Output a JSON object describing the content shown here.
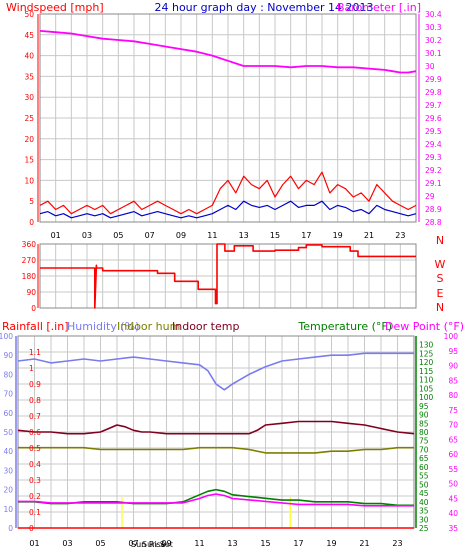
{
  "colors": {
    "background": "#ffffff",
    "grid": "#c8c8c8",
    "frame": "#000000",
    "windspeed": "#ff0000",
    "windavg": "#0000c8",
    "barometer": "#ff00ff",
    "direction": "#ff0000",
    "humidity": "#7b7bf0",
    "indoor_hum": "#7d7d00",
    "indoor_temp": "#800020",
    "temperature": "#008000",
    "dew_point": "#ff00ff",
    "rainfall": "#ff0000",
    "sun": "#ffff40"
  },
  "header": {
    "left": "Windspeed [mph]",
    "center": "24 hour graph day : November 14 2013",
    "right": "Barometer [.in]"
  },
  "panel3_header": {
    "rainfall": "Rainfall [.in]",
    "humidity": "Humidity (%)",
    "indoor_hum": "Indoor hum",
    "indoor_temp": "Indoor temp",
    "temperature": "Temperature (°F)",
    "dew_point": "Dew Point (°F)"
  },
  "sun_labels": {
    "rise": "Sun Rise",
    "set": "Sun Set"
  },
  "x_ticks": [
    "01",
    "03",
    "05",
    "07",
    "09",
    "11",
    "13",
    "15",
    "17",
    "19",
    "21",
    "23"
  ],
  "chart_data": [
    {
      "type": "line",
      "title": "24 hour graph day : November 14 2013",
      "x_range_hours": [
        0,
        24
      ],
      "y_left": {
        "label": "Windspeed [mph]",
        "range": [
          0,
          50
        ],
        "ticks": [
          "0",
          "5",
          "10",
          "15",
          "20",
          "25",
          "30",
          "35",
          "40",
          "45",
          "50"
        ]
      },
      "y_right": {
        "label": "Barometer [.in]",
        "range": [
          28.8,
          30.4
        ],
        "ticks": [
          "28.8",
          "28.9",
          "29",
          "29.1",
          "29.2",
          "29.3",
          "29.4",
          "29.5",
          "29.6",
          "29.7",
          "29.8",
          "29.9",
          "30",
          "30.1",
          "30.2",
          "30.3",
          "30.4"
        ]
      },
      "grid": true,
      "series": [
        {
          "name": "Windspeed [mph]",
          "axis": "left",
          "color": "#ff0000",
          "x": [
            0,
            0.5,
            1,
            1.5,
            2,
            2.5,
            3,
            3.5,
            4,
            4.5,
            5,
            5.5,
            6,
            6.5,
            7,
            7.5,
            8,
            8.5,
            9,
            9.5,
            10,
            10.5,
            11,
            11.5,
            12,
            12.5,
            13,
            13.5,
            14,
            14.5,
            15,
            15.5,
            16,
            16.5,
            17,
            17.5,
            18,
            18.5,
            19,
            19.5,
            20,
            20.5,
            21,
            21.5,
            22,
            22.5,
            23,
            23.5,
            24
          ],
          "y": [
            4,
            5,
            3,
            4,
            2,
            3,
            4,
            3,
            4,
            2,
            3,
            4,
            5,
            3,
            4,
            5,
            4,
            3,
            2,
            3,
            2,
            3,
            4,
            8,
            10,
            7,
            11,
            9,
            8,
            10,
            6,
            9,
            11,
            8,
            10,
            9,
            12,
            7,
            9,
            8,
            6,
            7,
            5,
            9,
            7,
            5,
            4,
            3,
            4
          ]
        },
        {
          "name": "Wind average",
          "axis": "left",
          "color": "#0000c8",
          "x": [
            0,
            0.5,
            1,
            1.5,
            2,
            2.5,
            3,
            3.5,
            4,
            4.5,
            5,
            5.5,
            6,
            6.5,
            7,
            7.5,
            8,
            8.5,
            9,
            9.5,
            10,
            10.5,
            11,
            11.5,
            12,
            12.5,
            13,
            13.5,
            14,
            14.5,
            15,
            15.5,
            16,
            16.5,
            17,
            17.5,
            18,
            18.5,
            19,
            19.5,
            20,
            20.5,
            21,
            21.5,
            22,
            22.5,
            23,
            23.5,
            24
          ],
          "y": [
            2,
            2.5,
            1.5,
            2,
            1,
            1.5,
            2,
            1.5,
            2,
            1,
            1.5,
            2,
            2.5,
            1.5,
            2,
            2.5,
            2,
            1.5,
            1,
            1.5,
            1,
            1.5,
            2,
            3,
            4,
            3,
            5,
            4,
            3.5,
            4,
            3,
            4,
            5,
            3.5,
            4,
            4,
            5,
            3,
            4,
            3.5,
            2.5,
            3,
            2,
            4,
            3,
            2.5,
            2,
            1.5,
            2
          ]
        },
        {
          "name": "Barometer [.in]",
          "axis": "right",
          "color": "#ff00ff",
          "x": [
            0,
            1,
            2,
            3,
            4,
            5,
            6,
            7,
            8,
            9,
            10,
            11,
            12,
            13,
            14,
            15,
            16,
            17,
            18,
            19,
            20,
            21,
            22,
            22.5,
            23,
            23.5,
            24
          ],
          "y": [
            30.27,
            30.26,
            30.25,
            30.23,
            30.21,
            30.2,
            30.19,
            30.17,
            30.15,
            30.13,
            30.11,
            30.08,
            30.04,
            30.0,
            30.0,
            30.0,
            29.99,
            30.0,
            30.0,
            29.99,
            29.99,
            29.98,
            29.97,
            29.96,
            29.95,
            29.95,
            29.96
          ]
        }
      ]
    },
    {
      "type": "line",
      "title": "",
      "x_range_hours": [
        0,
        24
      ],
      "y_left": {
        "label": "",
        "range": [
          0,
          360
        ],
        "ticks": [
          "0",
          "90",
          "180",
          "270",
          "360"
        ]
      },
      "y_right_compass": [
        "N",
        "W",
        "S",
        "E",
        "N"
      ],
      "grid": true,
      "series": [
        {
          "name": "Wind direction",
          "axis": "left",
          "color": "#ff0000",
          "x": [
            0,
            3.5,
            3.5,
            3.6,
            3.6,
            4.0,
            4.0,
            7.5,
            7.5,
            8.6,
            8.6,
            10.1,
            10.1,
            11.2,
            11.2,
            11.3,
            11.3,
            11.8,
            11.8,
            12.4,
            12.4,
            13.6,
            13.6,
            15.0,
            15.0,
            16.5,
            16.5,
            17.0,
            17.0,
            18.0,
            18.0,
            19.8,
            19.8,
            20.3,
            20.3,
            24
          ],
          "y": [
            225,
            225,
            0,
            240,
            225,
            225,
            210,
            210,
            195,
            195,
            150,
            150,
            105,
            105,
            25,
            25,
            360,
            360,
            320,
            320,
            350,
            350,
            320,
            320,
            325,
            325,
            340,
            340,
            355,
            355,
            345,
            345,
            320,
            320,
            290,
            290
          ]
        }
      ]
    },
    {
      "type": "line",
      "title": "",
      "x_range_hours": [
        0,
        24
      ],
      "y_left": {
        "label": "Rainfall [.in]",
        "range": [
          0,
          1.2
        ],
        "ticks": [
          "0",
          "0.1",
          "0.2",
          "0.3",
          "0.4",
          "0.5",
          "0.6",
          "0.7",
          "0.8",
          "0.9",
          "1",
          "1.1"
        ]
      },
      "y_left2": {
        "label": "Humidity (%)",
        "range": [
          0,
          100
        ],
        "ticks": [
          "0",
          "10",
          "20",
          "30",
          "40",
          "50",
          "60",
          "70",
          "80",
          "90",
          "100"
        ]
      },
      "y_right": {
        "label": "Temperature (°F)",
        "range": [
          25,
          135
        ],
        "ticks": [
          "25",
          "30",
          "35",
          "40",
          "45",
          "50",
          "55",
          "60",
          "65",
          "70",
          "75",
          "80",
          "85",
          "90",
          "95",
          "100",
          "105",
          "110",
          "115",
          "120",
          "125",
          "130"
        ]
      },
      "y_right2": {
        "label": "Dew Point (°F)",
        "range": [
          35,
          100
        ],
        "ticks": [
          "35",
          "40",
          "45",
          "50",
          "55",
          "60",
          "65",
          "70",
          "75",
          "80",
          "85",
          "90",
          "95",
          "100"
        ]
      },
      "grid": true,
      "sun_rise_hour": 6.3,
      "sun_set_hour": 16.5,
      "series": [
        {
          "name": "Humidity (%)",
          "axis": "left2",
          "color": "#7b7bf0",
          "x": [
            0,
            1,
            2,
            3,
            4,
            5,
            6,
            7,
            8,
            9,
            10,
            11,
            11.5,
            12,
            12.5,
            13,
            14,
            15,
            16,
            17,
            18,
            19,
            20,
            21,
            22,
            23,
            24
          ],
          "y": [
            87,
            88,
            86,
            87,
            88,
            87,
            88,
            89,
            88,
            87,
            86,
            85,
            82,
            75,
            72,
            75,
            80,
            84,
            87,
            88,
            89,
            90,
            90,
            91,
            91,
            91,
            91
          ]
        },
        {
          "name": "Indoor hum",
          "axis": "right",
          "color": "#7d7d00",
          "x": [
            0,
            1,
            2,
            3,
            4,
            5,
            6,
            7,
            8,
            9,
            10,
            11,
            12,
            13,
            14,
            15,
            16,
            17,
            18,
            19,
            20,
            21,
            22,
            23,
            24
          ],
          "y": [
            71,
            71,
            71,
            71,
            71,
            70,
            70,
            70,
            70,
            70,
            70,
            71,
            71,
            71,
            70,
            68,
            68,
            68,
            68,
            69,
            69,
            70,
            70,
            71,
            71
          ]
        },
        {
          "name": "Indoor temp",
          "axis": "right",
          "color": "#800020",
          "x": [
            0,
            1,
            2,
            3,
            4,
            5,
            5.5,
            6,
            6.5,
            7,
            7.5,
            8,
            9,
            10,
            11,
            12,
            13,
            14,
            14.5,
            15,
            16,
            17,
            18,
            19,
            20,
            21,
            22,
            23,
            24
          ],
          "y": [
            81,
            80,
            80,
            79,
            79,
            80,
            82,
            84,
            83,
            81,
            80,
            80,
            79,
            79,
            79,
            79,
            79,
            79,
            81,
            84,
            85,
            86,
            86,
            86,
            85,
            84,
            82,
            80,
            79
          ]
        },
        {
          "name": "Temperature (°F)",
          "axis": "right",
          "color": "#008000",
          "x": [
            0,
            1,
            2,
            3,
            4,
            5,
            6,
            7,
            8,
            9,
            10,
            11,
            11.5,
            12,
            12.5,
            13,
            14,
            15,
            16,
            17,
            18,
            19,
            20,
            21,
            22,
            23,
            24
          ],
          "y": [
            40,
            40,
            39,
            39,
            40,
            40,
            40,
            39,
            39,
            39,
            40,
            44,
            46,
            47,
            46,
            44,
            43,
            42,
            41,
            41,
            40,
            40,
            40,
            39,
            39,
            38,
            38
          ]
        },
        {
          "name": "Dew Point (°F)",
          "axis": "right2",
          "color": "#ff00ff",
          "x": [
            0,
            1,
            2,
            3,
            4,
            5,
            6,
            7,
            8,
            9,
            10,
            11,
            11.5,
            12,
            12.5,
            13,
            14,
            15,
            16,
            17,
            18,
            19,
            20,
            21,
            22,
            23,
            24
          ],
          "y": [
            44,
            44,
            43.5,
            43.5,
            43.5,
            43.5,
            43.5,
            43.5,
            43.5,
            43.5,
            43.5,
            45,
            46,
            46.5,
            46,
            45,
            44.5,
            44,
            43.5,
            43,
            43,
            43,
            43,
            42.5,
            42.5,
            42.5,
            42.5
          ]
        },
        {
          "name": "Rainfall [.in]",
          "axis": "left",
          "color": "#ff0000",
          "x": [
            0,
            24
          ],
          "y": [
            0,
            0
          ]
        }
      ]
    }
  ]
}
